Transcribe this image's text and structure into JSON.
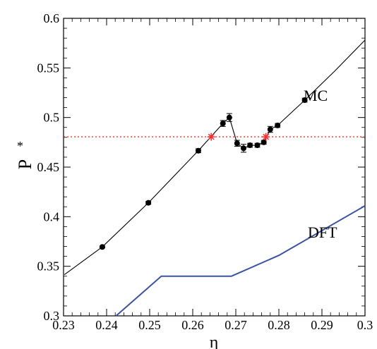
{
  "chart_data": {
    "type": "line",
    "xlabel": "η",
    "ylabel": "P",
    "ylabel_superscript": "*",
    "xlim": [
      0.23,
      0.3
    ],
    "ylim": [
      0.3,
      0.6
    ],
    "x_ticks": [
      "0.23",
      "0.24",
      "0.25",
      "0.26",
      "0.27",
      "0.28",
      "0.29",
      "0.3"
    ],
    "y_ticks": [
      "0.3",
      "0.35",
      "0.4",
      "0.45",
      "0.5",
      "0.55",
      "0.6"
    ],
    "grid": false,
    "annotations": [
      {
        "text": "MC",
        "x": 0.2858,
        "y": 0.52
      },
      {
        "text": "DFT",
        "x": 0.2855,
        "y": 0.385
      }
    ],
    "series": [
      {
        "role": "MC data",
        "kind": "scatter-errorbar",
        "color": "#000000",
        "points": [
          {
            "x": 0.239,
            "y": 0.3695,
            "err": 0.001
          },
          {
            "x": 0.2497,
            "y": 0.414,
            "err": 0.0015
          },
          {
            "x": 0.2613,
            "y": 0.4665,
            "err": 0.002
          },
          {
            "x": 0.267,
            "y": 0.494,
            "err": 0.003
          },
          {
            "x": 0.2685,
            "y": 0.5,
            "err": 0.004
          },
          {
            "x": 0.2703,
            "y": 0.474,
            "err": 0.003
          },
          {
            "x": 0.2718,
            "y": 0.469,
            "err": 0.004
          },
          {
            "x": 0.2733,
            "y": 0.472,
            "err": 0.002
          },
          {
            "x": 0.275,
            "y": 0.472,
            "err": 0.002
          },
          {
            "x": 0.2765,
            "y": 0.475,
            "err": 0.002
          },
          {
            "x": 0.278,
            "y": 0.488,
            "err": 0.003
          },
          {
            "x": 0.2797,
            "y": 0.492,
            "err": 0.002
          },
          {
            "x": 0.286,
            "y": 0.5175,
            "err": 0.002
          }
        ]
      },
      {
        "role": "MC fit",
        "kind": "line",
        "color": "#000000",
        "x": [
          0.2302,
          0.239,
          0.2497,
          0.2613,
          0.267,
          0.2685,
          0.2692,
          0.2703,
          0.2718,
          0.2733,
          0.275,
          0.2765,
          0.278,
          0.2797,
          0.286,
          0.293,
          0.3
        ],
        "y": [
          0.3415,
          0.3695,
          0.414,
          0.4665,
          0.494,
          0.5,
          0.49,
          0.474,
          0.469,
          0.472,
          0.472,
          0.475,
          0.488,
          0.492,
          0.5175,
          0.547,
          0.578
        ]
      },
      {
        "role": "DFT",
        "kind": "line",
        "color": "#3a54a4",
        "x": [
          0.2422,
          0.2527,
          0.269,
          0.28,
          0.3
        ],
        "y": [
          0.3,
          0.34,
          0.34,
          0.361,
          0.411
        ]
      },
      {
        "role": "coexistence pressure",
        "kind": "dotted-hline",
        "color": "#ff2a2a",
        "y": 0.4805
      },
      {
        "role": "coexisting densities",
        "kind": "star-markers",
        "color": "#ff2a2a",
        "x": [
          0.2643,
          0.277
        ],
        "y": [
          0.4805,
          0.4805
        ]
      }
    ]
  }
}
